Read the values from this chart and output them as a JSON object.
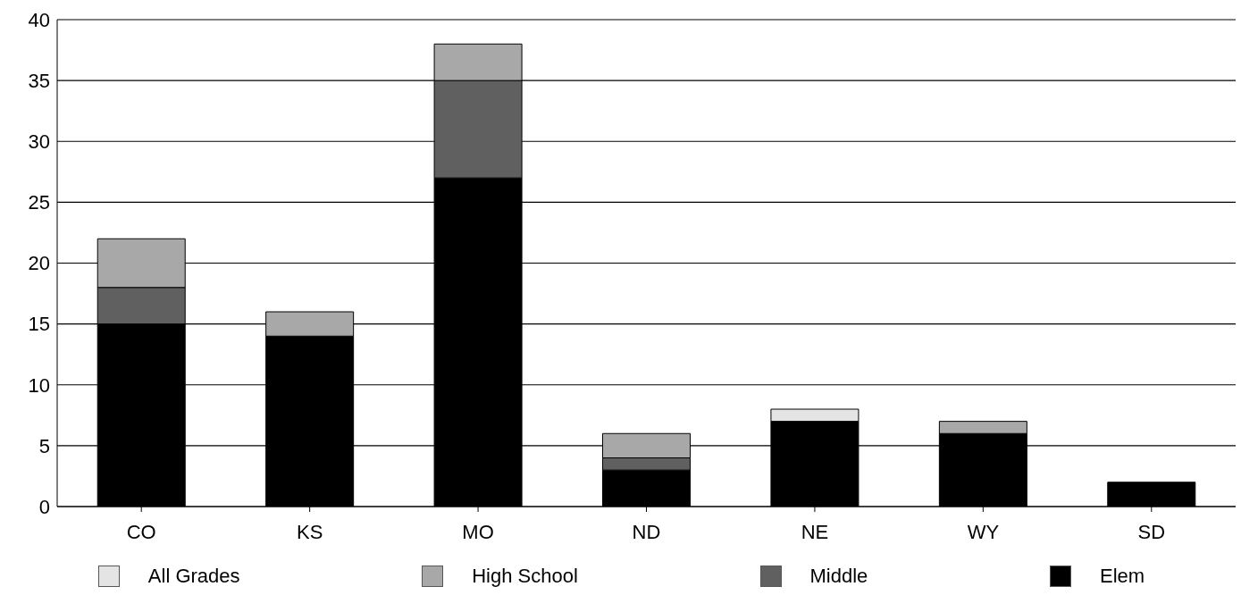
{
  "chart_data": {
    "type": "bar",
    "stacked": true,
    "categories": [
      "CO",
      "KS",
      "MO",
      "ND",
      "NE",
      "WY",
      "SD"
    ],
    "series": [
      {
        "name": "Elem",
        "color": "#000000",
        "values": [
          15,
          14,
          27,
          3,
          7,
          6,
          2
        ]
      },
      {
        "name": "Middle",
        "color": "#606060",
        "values": [
          3,
          0,
          8,
          1,
          0,
          0,
          0
        ]
      },
      {
        "name": "High School",
        "color": "#a8a8a8",
        "values": [
          4,
          2,
          3,
          2,
          0,
          1,
          0
        ]
      },
      {
        "name": "All Grades",
        "color": "#e4e4e4",
        "values": [
          0,
          0,
          0,
          0,
          1,
          0,
          0
        ]
      }
    ],
    "ylim": [
      0,
      40
    ],
    "yticks": [
      0,
      5,
      10,
      15,
      20,
      25,
      30,
      35,
      40
    ],
    "grid": "y",
    "legend": "bottom"
  }
}
